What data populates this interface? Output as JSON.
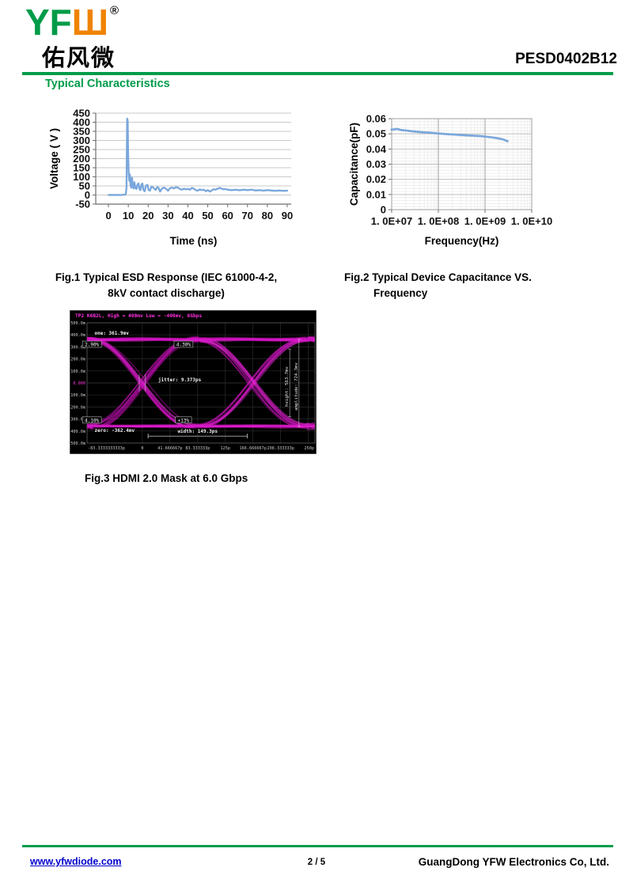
{
  "header": {
    "logo": {
      "green_text": "YF",
      "orange_text": "Ш",
      "registered": "®",
      "chinese_name": "佑风微"
    },
    "part_number": "PESD0402B12",
    "section_title": "Typical Characteristics"
  },
  "figures": {
    "fig1": {
      "caption_line1": "Fig.1 Typical ESD Response (IEC 61000-4-2,",
      "caption_line2": "8kV contact discharge)"
    },
    "fig2": {
      "caption_line1": "Fig.2 Typical Device Capacitance VS.",
      "caption_line2": "Frequency"
    },
    "fig3": {
      "caption": "Fig.3 HDMI 2.0 Mask at 6.0 Gbps"
    }
  },
  "footer": {
    "website": "www.yfwdiode.com",
    "page": "2 / 5",
    "company": "GuangDong YFW Electronics Co, Ltd."
  },
  "colors": {
    "brand_green": "#009C4A",
    "brand_orange": "#F08300",
    "link_blue": "#0000CC",
    "chart_line_blue": "#7AA7DC",
    "eye_magenta": "#E318D2"
  },
  "chart_data": [
    {
      "id": "fig1",
      "type": "line",
      "title": "",
      "xlabel": "Time (ns)",
      "ylabel": "Voltage ( V )",
      "xlim": [
        -6.4,
        92
      ],
      "ylim": [
        -50,
        450
      ],
      "x_ticks": [
        0,
        10,
        20,
        30,
        40,
        50,
        60,
        70,
        80,
        90
      ],
      "y_ticks": [
        450,
        400,
        350,
        300,
        250,
        200,
        150,
        100,
        50,
        0,
        -50
      ],
      "grid": "horizontal",
      "legend": "none",
      "line_color": "#7AA7DC",
      "points": [
        [
          0,
          0
        ],
        [
          1,
          1
        ],
        [
          2,
          0
        ],
        [
          3,
          1
        ],
        [
          4,
          0
        ],
        [
          5,
          1
        ],
        [
          6,
          0
        ],
        [
          7,
          1
        ],
        [
          8,
          2
        ],
        [
          8.7,
          4
        ],
        [
          9.1,
          40
        ],
        [
          9.4,
          420
        ],
        [
          9.7,
          410
        ],
        [
          9.9,
          230
        ],
        [
          10.2,
          120
        ],
        [
          10.5,
          78
        ],
        [
          10.8,
          112
        ],
        [
          11.1,
          58
        ],
        [
          11.5,
          40
        ],
        [
          11.9,
          95
        ],
        [
          12.3,
          48
        ],
        [
          12.7,
          36
        ],
        [
          13.1,
          70
        ],
        [
          13.6,
          38
        ],
        [
          14.1,
          33
        ],
        [
          14.6,
          56
        ],
        [
          15.1,
          64
        ],
        [
          15.6,
          33
        ],
        [
          16.1,
          27
        ],
        [
          16.6,
          58
        ],
        [
          17.1,
          63
        ],
        [
          17.6,
          29
        ],
        [
          18.2,
          21
        ],
        [
          18.9,
          52
        ],
        [
          19.6,
          56
        ],
        [
          20.2,
          28
        ],
        [
          20.9,
          24
        ],
        [
          21.6,
          46
        ],
        [
          22.3,
          43
        ],
        [
          23,
          36
        ],
        [
          23.8,
          28
        ],
        [
          24.5,
          43
        ],
        [
          25.2,
          40
        ],
        [
          26,
          19
        ],
        [
          27,
          36
        ],
        [
          28,
          41
        ],
        [
          29,
          34
        ],
        [
          30,
          24
        ],
        [
          31,
          38
        ],
        [
          32,
          41
        ],
        [
          33,
          36
        ],
        [
          34,
          43
        ],
        [
          35,
          41
        ],
        [
          36,
          33
        ],
        [
          37,
          29
        ],
        [
          38,
          35
        ],
        [
          39,
          31
        ],
        [
          40,
          34
        ],
        [
          41,
          29
        ],
        [
          42,
          39
        ],
        [
          43,
          35
        ],
        [
          44,
          27
        ],
        [
          45,
          24
        ],
        [
          46,
          31
        ],
        [
          47,
          27
        ],
        [
          48,
          29
        ],
        [
          49,
          21
        ],
        [
          50,
          27
        ],
        [
          51,
          19
        ],
        [
          52,
          25
        ],
        [
          53,
          32
        ],
        [
          54,
          29
        ],
        [
          55,
          35
        ],
        [
          56,
          39
        ],
        [
          57,
          35
        ],
        [
          58,
          31
        ],
        [
          59,
          33
        ],
        [
          60,
          29
        ],
        [
          62,
          27
        ],
        [
          64,
          29
        ],
        [
          66,
          26
        ],
        [
          68,
          29
        ],
        [
          70,
          27
        ],
        [
          72,
          29
        ],
        [
          74,
          25
        ],
        [
          76,
          27
        ],
        [
          78,
          24
        ],
        [
          80,
          27
        ],
        [
          82,
          25
        ],
        [
          84,
          23
        ],
        [
          86,
          25
        ],
        [
          88,
          23
        ],
        [
          90,
          24
        ]
      ]
    },
    {
      "id": "fig2",
      "type": "line",
      "title": "",
      "xlabel": "Frequency(Hz)",
      "ylabel": "Capacitance(pF)",
      "x_scale": "log",
      "xlim": [
        10000000.0,
        10000000000.0
      ],
      "ylim": [
        0,
        0.06
      ],
      "x_tick_labels": [
        "1. 0E+07",
        "1. 0E+08",
        "1. 0E+09",
        "1. 0E+10"
      ],
      "x_tick_values": [
        10000000.0,
        100000000.0,
        1000000000.0,
        10000000000.0
      ],
      "y_ticks": [
        0,
        0.01,
        0.02,
        0.03,
        0.04,
        0.05,
        0.06
      ],
      "grid": "both-with-log-minors",
      "legend": "none",
      "line_color": "#7AA7DC",
      "points": [
        [
          10000000.0,
          0.0528
        ],
        [
          13000000.0,
          0.0532
        ],
        [
          16000000.0,
          0.0525
        ],
        [
          20000000.0,
          0.0522
        ],
        [
          25000000.0,
          0.0518
        ],
        [
          32000000.0,
          0.0515
        ],
        [
          40000000.0,
          0.0512
        ],
        [
          50000000.0,
          0.051
        ],
        [
          63000000.0,
          0.0508
        ],
        [
          80000000.0,
          0.0505
        ],
        [
          100000000.0,
          0.0502
        ],
        [
          130000000.0,
          0.05
        ],
        [
          160000000.0,
          0.0498
        ],
        [
          200000000.0,
          0.0496
        ],
        [
          250000000.0,
          0.0494
        ],
        [
          320000000.0,
          0.0492
        ],
        [
          400000000.0,
          0.049
        ],
        [
          500000000.0,
          0.0489
        ],
        [
          630000000.0,
          0.0487
        ],
        [
          800000000.0,
          0.0485
        ],
        [
          1000000000.0,
          0.0482
        ],
        [
          1300000000.0,
          0.0478
        ],
        [
          1600000000.0,
          0.0474
        ],
        [
          2000000000.0,
          0.0469
        ],
        [
          2500000000.0,
          0.0462
        ],
        [
          3000000000.0,
          0.0452
        ],
        [
          3200000000.0,
          0.0447
        ]
      ]
    },
    {
      "id": "fig3",
      "type": "eye",
      "title": "TP2 K6B2L, High = 400mv Low = -400mv, 6Gbps",
      "bit_rate": "6Gbps",
      "unit_interval_ps": 166.667,
      "x_range_ps": [
        -83.333,
        260
      ],
      "y_range_mv": [
        -500,
        500
      ],
      "one_mv": 361.9,
      "zero_mv": -362.4,
      "y_ticks": [
        {
          "v": 500,
          "label": "500.0m"
        },
        {
          "v": 400,
          "label": "400.0m"
        },
        {
          "v": 300,
          "label": "300.0m"
        },
        {
          "v": 200,
          "label": "200.0m"
        },
        {
          "v": 100,
          "label": "100.0m"
        },
        {
          "v": 0,
          "label": "0.000"
        },
        {
          "v": -100,
          "label": "-100.0m"
        },
        {
          "v": -200,
          "label": "-200.0m"
        },
        {
          "v": -300,
          "label": "-300.0m"
        },
        {
          "v": -400,
          "label": "-400.0m"
        },
        {
          "v": -500,
          "label": "-500.0m"
        }
      ],
      "x_ticks": [
        {
          "t": -83.333,
          "label": "-83.3333333333p"
        },
        {
          "t": 0,
          "label": "0"
        },
        {
          "t": 41.667,
          "label": "41.666667p"
        },
        {
          "t": 83.333,
          "label": "83.333333p"
        },
        {
          "t": 125,
          "label": "125p"
        },
        {
          "t": 166.667,
          "label": "166.666667p"
        },
        {
          "t": 208.333,
          "label": "208.333333p"
        },
        {
          "t": 250,
          "label": "250p"
        }
      ],
      "annotations": [
        {
          "text": "one: 361.9mv",
          "t": -72,
          "v": 402
        },
        {
          "text": "zero: -362.4mv",
          "t": -72,
          "v": -408
        },
        {
          "text": "jitter: 9.373ps",
          "t": 24,
          "v": 14
        }
      ],
      "mask_hits": [
        {
          "text": "2.90%",
          "t": -76,
          "v": 312
        },
        {
          "text": "4.30%",
          "t": 62,
          "v": 312
        },
        {
          "text": "4.10%",
          "t": -76,
          "v": -318
        },
        {
          "text": "+13%",
          "t": 62,
          "v": -318
        }
      ],
      "measures": {
        "width": {
          "label": "width: 149.3ps",
          "t1": 8.6,
          "t2": 157.9,
          "v": -442,
          "label_v": -414
        },
        "cursors": [
          {
            "label": "height: 563.7mv",
            "t": 222,
            "v1": -281.8,
            "v2": 281.9
          },
          {
            "label": "amplitude: 724.3mv",
            "t": 236,
            "v1": -362.4,
            "v2": 361.9
          }
        ],
        "jitter_cursors": {
          "t1": -4.7,
          "t2": 4.7,
          "v1": -70,
          "v2": 70
        }
      }
    }
  ]
}
